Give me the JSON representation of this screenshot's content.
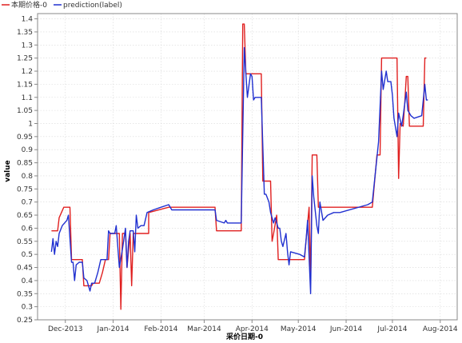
{
  "chart_data": {
    "type": "line",
    "title": "",
    "xlabel": "采价日期-0",
    "ylabel": "value",
    "ylim": [
      0.25,
      1.42
    ],
    "xlim": [
      "2013-11-13",
      "2014-08-12"
    ],
    "grid": true,
    "legend": "top-left",
    "y_ticks": [
      "0.25",
      "0.3",
      "0.35",
      "0.4",
      "0.45",
      "0.5",
      "0.55",
      "0.6",
      "0.65",
      "0.7",
      "0.75",
      "0.8",
      "0.85",
      "0.9",
      "0.95",
      "1",
      "1.05",
      "1.1",
      "1.15",
      "1.2",
      "1.25",
      "1.3",
      "1.35",
      "1.4"
    ],
    "x_ticks": [
      {
        "label": "Dec-2013",
        "date": "2013-12-01"
      },
      {
        "label": "Jan-2014",
        "date": "2014-01-01"
      },
      {
        "label": "Feb-2014",
        "date": "2014-02-01"
      },
      {
        "label": "Mar-2014",
        "date": "2014-03-01"
      },
      {
        "label": "Apr-2014",
        "date": "2014-04-01"
      },
      {
        "label": "May-2014",
        "date": "2014-05-01"
      },
      {
        "label": "Jun-2014",
        "date": "2014-06-01"
      },
      {
        "label": "Jul-2014",
        "date": "2014-07-01"
      },
      {
        "label": "Aug-2014",
        "date": "2014-08-01"
      }
    ],
    "series": [
      {
        "name": "本期价格-0",
        "color": "#e02020",
        "points": [
          [
            "2013-11-22",
            0.59
          ],
          [
            "2013-11-26",
            0.59
          ],
          [
            "2013-11-27",
            0.64
          ],
          [
            "2013-11-30",
            0.68
          ],
          [
            "2013-12-04",
            0.68
          ],
          [
            "2013-12-05",
            0.48
          ],
          [
            "2013-12-12",
            0.48
          ],
          [
            "2013-12-13",
            0.38
          ],
          [
            "2013-12-18",
            0.38
          ],
          [
            "2013-12-19",
            0.39
          ],
          [
            "2013-12-23",
            0.39
          ],
          [
            "2013-12-25",
            0.43
          ],
          [
            "2013-12-27",
            0.48
          ],
          [
            "2013-12-29",
            0.48
          ],
          [
            "2013-12-30",
            0.58
          ],
          [
            "2014-01-05",
            0.58
          ],
          [
            "2014-01-06",
            0.29
          ],
          [
            "2014-01-07",
            0.58
          ],
          [
            "2014-01-09",
            0.58
          ],
          [
            "2014-01-10",
            0.45
          ],
          [
            "2014-01-12",
            0.58
          ],
          [
            "2014-01-13",
            0.38
          ],
          [
            "2014-01-14",
            0.58
          ],
          [
            "2014-01-24",
            0.58
          ],
          [
            "2014-01-24",
            0.66
          ],
          [
            "2014-02-06",
            0.68
          ],
          [
            "2014-03-08",
            0.68
          ],
          [
            "2014-03-09",
            0.59
          ],
          [
            "2014-03-25",
            0.59
          ],
          [
            "2014-03-26",
            1.38
          ],
          [
            "2014-03-27",
            1.38
          ],
          [
            "2014-03-28",
            1.19
          ],
          [
            "2014-04-07",
            1.19
          ],
          [
            "2014-04-08",
            0.78
          ],
          [
            "2014-04-13",
            0.78
          ],
          [
            "2014-04-14",
            0.55
          ],
          [
            "2014-04-15",
            0.58
          ],
          [
            "2014-04-17",
            0.65
          ],
          [
            "2014-04-18",
            0.48
          ],
          [
            "2014-05-05",
            0.48
          ],
          [
            "2014-05-06",
            0.55
          ],
          [
            "2014-05-08",
            0.68
          ],
          [
            "2014-05-09",
            0.39
          ],
          [
            "2014-05-10",
            0.88
          ],
          [
            "2014-05-13",
            0.88
          ],
          [
            "2014-05-14",
            0.68
          ],
          [
            "2014-06-18",
            0.68
          ],
          [
            "2014-06-21",
            0.88
          ],
          [
            "2014-06-23",
            0.88
          ],
          [
            "2014-06-24",
            1.25
          ],
          [
            "2014-07-04",
            1.25
          ],
          [
            "2014-07-05",
            0.79
          ],
          [
            "2014-07-06",
            1.0
          ],
          [
            "2014-07-08",
            0.99
          ],
          [
            "2014-07-09",
            1.08
          ],
          [
            "2014-07-10",
            1.18
          ],
          [
            "2014-07-11",
            1.18
          ],
          [
            "2014-07-12",
            0.99
          ],
          [
            "2014-07-21",
            0.99
          ],
          [
            "2014-07-22",
            1.25
          ],
          [
            "2014-07-23",
            1.25
          ]
        ]
      },
      {
        "name": "prediction(label)",
        "color": "#2030d0",
        "points": [
          [
            "2013-11-22",
            0.51
          ],
          [
            "2013-11-23",
            0.56
          ],
          [
            "2013-11-24",
            0.5
          ],
          [
            "2013-11-25",
            0.55
          ],
          [
            "2013-11-26",
            0.53
          ],
          [
            "2013-11-27",
            0.58
          ],
          [
            "2013-11-29",
            0.61
          ],
          [
            "2013-12-02",
            0.63
          ],
          [
            "2013-12-03",
            0.65
          ],
          [
            "2013-12-04",
            0.56
          ],
          [
            "2013-12-05",
            0.47
          ],
          [
            "2013-12-06",
            0.47
          ],
          [
            "2013-12-07",
            0.4
          ],
          [
            "2013-12-08",
            0.46
          ],
          [
            "2013-12-10",
            0.47
          ],
          [
            "2013-12-12",
            0.47
          ],
          [
            "2013-12-13",
            0.41
          ],
          [
            "2013-12-15",
            0.4
          ],
          [
            "2013-12-17",
            0.36
          ],
          [
            "2013-12-18",
            0.39
          ],
          [
            "2013-12-20",
            0.39
          ],
          [
            "2013-12-22",
            0.43
          ],
          [
            "2013-12-24",
            0.48
          ],
          [
            "2013-12-26",
            0.48
          ],
          [
            "2013-12-28",
            0.48
          ],
          [
            "2013-12-29",
            0.59
          ],
          [
            "2013-12-30",
            0.58
          ],
          [
            "2014-01-02",
            0.58
          ],
          [
            "2014-01-03",
            0.61
          ],
          [
            "2014-01-05",
            0.45
          ],
          [
            "2014-01-07",
            0.52
          ],
          [
            "2014-01-09",
            0.6
          ],
          [
            "2014-01-10",
            0.45
          ],
          [
            "2014-01-11",
            0.55
          ],
          [
            "2014-01-12",
            0.59
          ],
          [
            "2014-01-14",
            0.59
          ],
          [
            "2014-01-15",
            0.51
          ],
          [
            "2014-01-16",
            0.65
          ],
          [
            "2014-01-17",
            0.6
          ],
          [
            "2014-01-19",
            0.61
          ],
          [
            "2014-01-21",
            0.61
          ],
          [
            "2014-01-23",
            0.66
          ],
          [
            "2014-01-27",
            0.67
          ],
          [
            "2014-02-01",
            0.68
          ],
          [
            "2014-02-06",
            0.69
          ],
          [
            "2014-02-08",
            0.67
          ],
          [
            "2014-03-08",
            0.67
          ],
          [
            "2014-03-09",
            0.63
          ],
          [
            "2014-03-14",
            0.62
          ],
          [
            "2014-03-15",
            0.63
          ],
          [
            "2014-03-16",
            0.62
          ],
          [
            "2014-03-25",
            0.62
          ],
          [
            "2014-03-27",
            1.29
          ],
          [
            "2014-03-29",
            1.1
          ],
          [
            "2014-03-31",
            1.19
          ],
          [
            "2014-04-01",
            1.18
          ],
          [
            "2014-04-02",
            1.09
          ],
          [
            "2014-04-03",
            1.1
          ],
          [
            "2014-04-07",
            1.1
          ],
          [
            "2014-04-09",
            0.73
          ],
          [
            "2014-04-10",
            0.73
          ],
          [
            "2014-04-12",
            0.7
          ],
          [
            "2014-04-13",
            0.66
          ],
          [
            "2014-04-15",
            0.62
          ],
          [
            "2014-04-16",
            0.64
          ],
          [
            "2014-04-18",
            0.6
          ],
          [
            "2014-04-19",
            0.6
          ],
          [
            "2014-04-20",
            0.55
          ],
          [
            "2014-04-21",
            0.53
          ],
          [
            "2014-04-23",
            0.58
          ],
          [
            "2014-04-24",
            0.51
          ],
          [
            "2014-04-25",
            0.46
          ],
          [
            "2014-04-26",
            0.51
          ],
          [
            "2014-05-02",
            0.5
          ],
          [
            "2014-05-05",
            0.49
          ],
          [
            "2014-05-06",
            0.55
          ],
          [
            "2014-05-07",
            0.63
          ],
          [
            "2014-05-09",
            0.35
          ],
          [
            "2014-05-10",
            0.8
          ],
          [
            "2014-05-11",
            0.72
          ],
          [
            "2014-05-13",
            0.61
          ],
          [
            "2014-05-14",
            0.58
          ],
          [
            "2014-05-15",
            0.7
          ],
          [
            "2014-05-17",
            0.63
          ],
          [
            "2014-05-20",
            0.65
          ],
          [
            "2014-05-24",
            0.66
          ],
          [
            "2014-05-28",
            0.66
          ],
          [
            "2014-06-15",
            0.69
          ],
          [
            "2014-06-18",
            0.7
          ],
          [
            "2014-06-21",
            0.87
          ],
          [
            "2014-06-22",
            0.93
          ],
          [
            "2014-06-24",
            1.2
          ],
          [
            "2014-06-25",
            1.13
          ],
          [
            "2014-06-27",
            1.2
          ],
          [
            "2014-06-28",
            1.16
          ],
          [
            "2014-06-30",
            1.16
          ],
          [
            "2014-07-01",
            1.11
          ],
          [
            "2014-07-02",
            1.02
          ],
          [
            "2014-07-04",
            0.95
          ],
          [
            "2014-07-05",
            1.04
          ],
          [
            "2014-07-07",
            0.99
          ],
          [
            "2014-07-08",
            1.03
          ],
          [
            "2014-07-10",
            1.12
          ],
          [
            "2014-07-11",
            1.05
          ],
          [
            "2014-07-12",
            1.04
          ],
          [
            "2014-07-13",
            1.03
          ],
          [
            "2014-07-15",
            1.02
          ],
          [
            "2014-07-20",
            1.03
          ],
          [
            "2014-07-22",
            1.15
          ],
          [
            "2014-07-23",
            1.09
          ],
          [
            "2014-07-24",
            1.09
          ]
        ]
      }
    ]
  }
}
